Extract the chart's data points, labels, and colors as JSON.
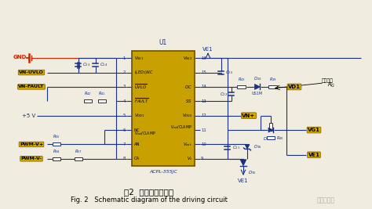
{
  "bg_color": "#f0ece0",
  "title_cn": "图2  驱动电路原理图",
  "title_en": "Fig. 2   Schematic diagram of the driving circuit",
  "watermark": "半导体在线",
  "line_color": "#1a3080",
  "ic_fill": "#c8a000",
  "ic_edge": "#6b5000",
  "gold_fill": "#d4aa00",
  "gold_edge": "#8b6800",
  "gnd_color": "#cc2200",
  "red_color": "#cc2200",
  "black": "#000000",
  "white": "#ffffff",
  "gray_wm": "#b0a090"
}
